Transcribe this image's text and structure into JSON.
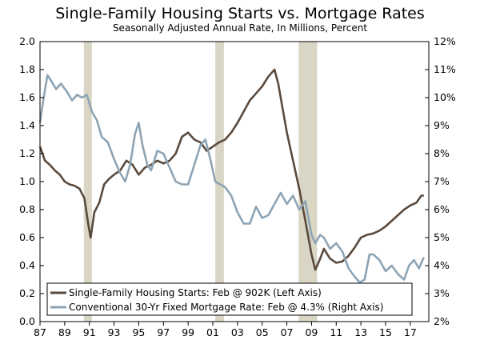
{
  "chart_data": {
    "type": "line",
    "title": "Single-Family Housing Starts vs. Mortgage Rates",
    "subtitle": "Seasonally Adjusted Annual Rate, In Millions, Percent",
    "x_range": [
      1987.0,
      2018.5
    ],
    "x_ticks": [
      1987,
      1989,
      1991,
      1993,
      1995,
      1997,
      1999,
      2001,
      2003,
      2005,
      2007,
      2009,
      2011,
      2013,
      2015,
      2017
    ],
    "x_tick_labels": [
      "87",
      "89",
      "91",
      "93",
      "95",
      "97",
      "99",
      "01",
      "03",
      "05",
      "07",
      "09",
      "11",
      "13",
      "15",
      "17"
    ],
    "y_left": {
      "range": [
        0.0,
        2.0
      ],
      "ticks": [
        0.0,
        0.2,
        0.4,
        0.6,
        0.8,
        1.0,
        1.2,
        1.4,
        1.6,
        1.8,
        2.0
      ],
      "tick_labels": [
        "0.0",
        "0.2",
        "0.4",
        "0.6",
        "0.8",
        "1.0",
        "1.2",
        "1.4",
        "1.6",
        "1.8",
        "2.0"
      ]
    },
    "y_right": {
      "range": [
        2,
        12
      ],
      "ticks": [
        2,
        3,
        4,
        5,
        6,
        7,
        8,
        9,
        10,
        11,
        12
      ],
      "tick_labels": [
        "2%",
        "3%",
        "4%",
        "5%",
        "6%",
        "7%",
        "8%",
        "9%",
        "10%",
        "11%",
        "12%"
      ]
    },
    "recessions": [
      [
        1990.55,
        1991.2
      ],
      [
        2001.2,
        2001.9
      ],
      [
        2007.95,
        2009.45
      ]
    ],
    "series": [
      {
        "name": "Single-Family Housing Starts: Feb @ 902K (Left Axis)",
        "axis": "left",
        "color": "#5a4a3e",
        "x": [
          1987.0,
          1987.4,
          1987.8,
          1988.2,
          1988.6,
          1989.0,
          1989.4,
          1989.8,
          1990.2,
          1990.6,
          1990.9,
          1991.1,
          1991.4,
          1991.8,
          1992.2,
          1992.6,
          1993.0,
          1993.5,
          1994.0,
          1994.5,
          1995.0,
          1995.5,
          1996.0,
          1996.5,
          1997.0,
          1997.5,
          1998.0,
          1998.5,
          1999.0,
          1999.5,
          2000.0,
          2000.5,
          2001.0,
          2001.5,
          2002.0,
          2002.5,
          2003.0,
          2003.5,
          2004.0,
          2004.5,
          2005.0,
          2005.5,
          2006.0,
          2006.3,
          2006.6,
          2007.0,
          2007.5,
          2008.0,
          2008.5,
          2009.0,
          2009.3,
          2009.7,
          2010.0,
          2010.5,
          2011.0,
          2011.5,
          2012.0,
          2012.5,
          2013.0,
          2013.5,
          2014.0,
          2014.5,
          2015.0,
          2015.5,
          2016.0,
          2016.5,
          2017.0,
          2017.5,
          2017.9,
          2018.1
        ],
        "values": [
          1.25,
          1.15,
          1.12,
          1.08,
          1.05,
          1.0,
          0.98,
          0.97,
          0.95,
          0.88,
          0.7,
          0.6,
          0.78,
          0.85,
          0.98,
          1.02,
          1.05,
          1.08,
          1.15,
          1.12,
          1.05,
          1.1,
          1.12,
          1.15,
          1.13,
          1.15,
          1.2,
          1.32,
          1.35,
          1.3,
          1.28,
          1.22,
          1.25,
          1.28,
          1.3,
          1.35,
          1.42,
          1.5,
          1.58,
          1.63,
          1.68,
          1.75,
          1.8,
          1.7,
          1.55,
          1.35,
          1.15,
          0.95,
          0.72,
          0.48,
          0.37,
          0.45,
          0.52,
          0.45,
          0.42,
          0.43,
          0.47,
          0.53,
          0.6,
          0.62,
          0.63,
          0.65,
          0.68,
          0.72,
          0.76,
          0.8,
          0.83,
          0.85,
          0.9,
          0.9
        ]
      },
      {
        "name": "Conventional 30-Yr Fixed Mortgage Rate: Feb @ 4.3% (Right Axis)",
        "axis": "right",
        "color": "#8ea4b4",
        "x": [
          1987.0,
          1987.3,
          1987.6,
          1987.9,
          1988.3,
          1988.7,
          1989.2,
          1989.6,
          1990.0,
          1990.4,
          1990.8,
          1991.2,
          1991.6,
          1992.0,
          1992.5,
          1993.0,
          1993.5,
          1993.9,
          1994.3,
          1994.7,
          1995.0,
          1995.3,
          1995.7,
          1996.0,
          1996.5,
          1997.0,
          1997.5,
          1998.0,
          1998.5,
          1999.0,
          1999.5,
          2000.0,
          2000.4,
          2000.8,
          2001.2,
          2001.6,
          2002.0,
          2002.5,
          2003.0,
          2003.5,
          2004.0,
          2004.5,
          2005.0,
          2005.5,
          2006.0,
          2006.5,
          2007.0,
          2007.5,
          2008.0,
          2008.5,
          2009.0,
          2009.3,
          2009.7,
          2010.0,
          2010.5,
          2011.0,
          2011.5,
          2012.0,
          2012.5,
          2012.9,
          2013.3,
          2013.7,
          2014.0,
          2014.5,
          2015.0,
          2015.5,
          2016.0,
          2016.5,
          2016.9,
          2017.3,
          2017.7,
          2018.1
        ],
        "values": [
          9.1,
          10.0,
          10.8,
          10.6,
          10.3,
          10.5,
          10.2,
          9.9,
          10.1,
          10.0,
          10.1,
          9.5,
          9.2,
          8.6,
          8.4,
          7.8,
          7.3,
          7.0,
          7.6,
          8.7,
          9.1,
          8.3,
          7.6,
          7.4,
          8.1,
          8.0,
          7.5,
          7.0,
          6.9,
          6.9,
          7.6,
          8.3,
          8.5,
          7.8,
          7.0,
          6.9,
          6.8,
          6.5,
          5.9,
          5.5,
          5.5,
          6.1,
          5.7,
          5.8,
          6.2,
          6.6,
          6.2,
          6.5,
          6.0,
          6.3,
          5.1,
          4.8,
          5.1,
          5.0,
          4.6,
          4.8,
          4.5,
          3.9,
          3.6,
          3.4,
          3.5,
          4.4,
          4.4,
          4.2,
          3.8,
          4.0,
          3.7,
          3.5,
          4.0,
          4.2,
          3.9,
          4.3
        ]
      }
    ]
  }
}
